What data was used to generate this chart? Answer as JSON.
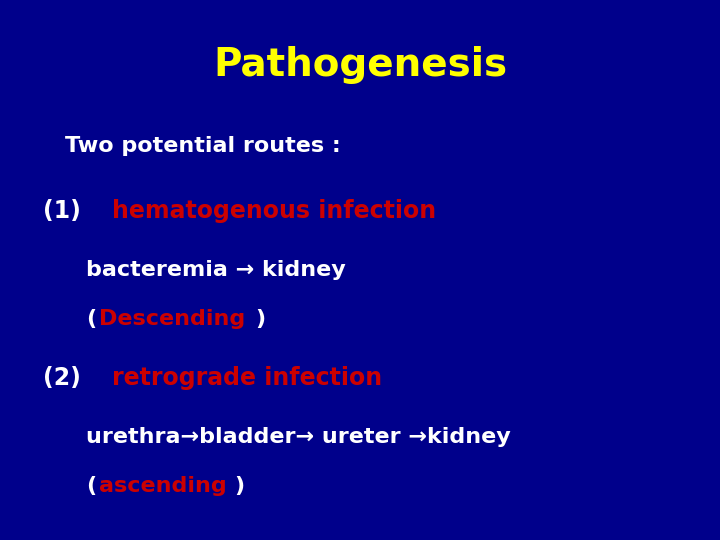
{
  "background_color": "#00008B",
  "title": "Pathogenesis",
  "title_color": "#FFFF00",
  "title_fontsize": 28,
  "white": "#FFFFFF",
  "red": "#CC0000",
  "figsize": [
    7.2,
    5.4
  ],
  "dpi": 100
}
